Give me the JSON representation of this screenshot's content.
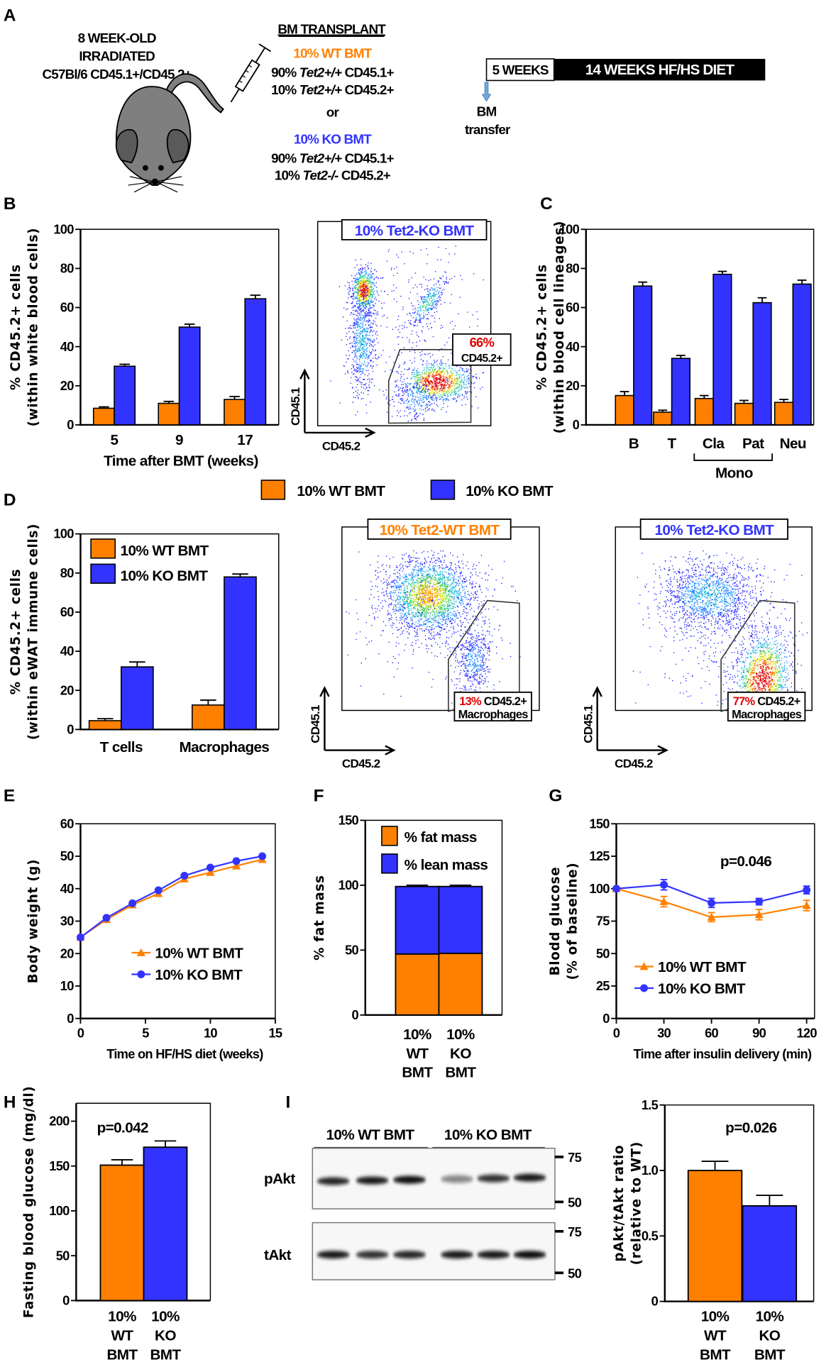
{
  "panel_labels": {
    "A": "A",
    "B": "B",
    "C": "C",
    "D": "D",
    "E": "E",
    "F": "F",
    "G": "G",
    "H": "H",
    "I": "I"
  },
  "colors": {
    "wt": "#ff8000",
    "ko": "#3333ff",
    "highlight": "#e00000",
    "arrow": "#6fa8dc",
    "mouse": "#7f7f7f"
  },
  "panel_a": {
    "mouse_text": [
      "8 WEEK-OLD",
      "IRRADIATED",
      "C57Bl/6 CD45.1+/CD45.2+"
    ],
    "transplant_title": "BM TRANSPLANT",
    "wt_label": "10% WT BMT",
    "wt_lines": [
      [
        "90% ",
        "Tet2+/+",
        " CD45.1+"
      ],
      [
        "10% ",
        "Tet2+/+",
        " CD45.2+"
      ]
    ],
    "or": "or",
    "ko_label": "10% KO BMT",
    "ko_lines": [
      [
        "90% ",
        "Tet2+/+",
        " CD45.1+"
      ],
      [
        "10% ",
        "Tet2-/-",
        " CD45.2+"
      ]
    ],
    "timeline": {
      "phase1": "5 WEEKS",
      "phase2": "14 WEEKS HF/HS DIET",
      "arrow_label": [
        "BM",
        "transfer"
      ]
    }
  },
  "shared_legend": [
    "10% WT BMT",
    "10% KO BMT"
  ],
  "flow_plots": [
    {
      "title": "10% Tet2-KO BMT",
      "title_color": "#3333ff",
      "gate_pct": "66%",
      "gate_label": [
        "CD45.2+"
      ],
      "xlabel": "CD45.2",
      "ylabel": "CD45.1"
    },
    {
      "title": "10% Tet2-WT BMT",
      "title_color": "#ff8000",
      "gate_pct": "13%",
      "gate_label": [
        " CD45.2+",
        "Macrophages"
      ],
      "xlabel": "CD45.2",
      "ylabel": "CD45.1"
    },
    {
      "title": "10% Tet2-KO BMT",
      "title_color": "#3333ff",
      "gate_pct": "77%",
      "gate_label": [
        " CD45.2+",
        "Macrophages"
      ],
      "xlabel": "CD45.2",
      "ylabel": "CD45.1"
    }
  ],
  "western_blot": {
    "group_labels": [
      "10% WT BMT",
      "10% KO BMT"
    ],
    "rows": [
      "pAkt",
      "tAkt"
    ],
    "markers": [
      "75",
      "50"
    ],
    "band_intensity": {
      "pAkt": [
        0.85,
        0.9,
        0.95,
        0.45,
        0.8,
        0.9
      ],
      "tAkt": [
        0.9,
        0.8,
        0.85,
        0.9,
        0.9,
        0.95
      ]
    }
  },
  "chart_data": [
    {
      "type": "bar",
      "categories": [
        "5",
        "9",
        "17"
      ],
      "series": [
        {
          "name": "10% WT BMT",
          "values": [
            8.5,
            11,
            13
          ],
          "errors": [
            0.7,
            1,
            1.5
          ]
        },
        {
          "name": "10% KO BMT",
          "values": [
            30,
            50,
            64.5
          ],
          "errors": [
            1,
            1.5,
            1.8
          ]
        }
      ],
      "xlabel": "Time after BMT (weeks)",
      "ylabel": [
        "% CD45.2+ cells",
        "(within white blood cells)"
      ],
      "ylim": [
        0,
        100
      ],
      "yticks": [
        0,
        20,
        40,
        60,
        80,
        100
      ],
      "legend": "below"
    },
    {
      "type": "bar",
      "categories": [
        "B",
        "T",
        "Cla",
        "Pat",
        "Neu"
      ],
      "group_label": "Mono",
      "series": [
        {
          "name": "10% WT BMT",
          "values": [
            15,
            6.5,
            13.5,
            11,
            11.5
          ],
          "errors": [
            2,
            1,
            1.5,
            1.5,
            1.5
          ]
        },
        {
          "name": "10% KO BMT",
          "values": [
            71,
            34,
            77,
            62.5,
            72
          ],
          "errors": [
            2,
            1.5,
            1.5,
            2.5,
            2
          ]
        }
      ],
      "xlabel": "",
      "ylabel": [
        "% CD45.2+ cells",
        "(within blood cell lineages)"
      ],
      "ylim": [
        0,
        100
      ],
      "yticks": [
        0,
        20,
        40,
        60,
        80,
        100
      ],
      "legend": "below"
    },
    {
      "type": "bar",
      "categories": [
        "T cells",
        "Macrophages"
      ],
      "series": [
        {
          "name": "10% WT BMT",
          "values": [
            4.5,
            12.5
          ],
          "errors": [
            1,
            2.5
          ]
        },
        {
          "name": "10% KO BMT",
          "values": [
            32,
            78
          ],
          "errors": [
            2.5,
            1.5
          ]
        }
      ],
      "xlabel": "",
      "ylabel": [
        "% CD45.2+ cells",
        "(within eWAT immune cells)"
      ],
      "ylim": [
        0,
        100
      ],
      "yticks": [
        0,
        20,
        40,
        60,
        80,
        100
      ],
      "legend": "top-left"
    },
    {
      "type": "line",
      "x": [
        0,
        2,
        4,
        6,
        8,
        10,
        12,
        14
      ],
      "series": [
        {
          "name": "10% WT BMT",
          "marker": "triangle",
          "values": [
            25,
            30.5,
            35,
            38.5,
            43,
            45,
            47,
            49
          ]
        },
        {
          "name": "10% KO BMT",
          "marker": "circle",
          "values": [
            25,
            31,
            35.5,
            39.5,
            44,
            46.5,
            48.5,
            50
          ]
        }
      ],
      "xlabel": "Time on HF/HS diet (weeks)",
      "ylabel": [
        "Body weight (g)"
      ],
      "xlim": [
        0,
        15
      ],
      "xticks": [
        0,
        5,
        10,
        15
      ],
      "ylim": [
        0,
        60
      ],
      "yticks": [
        0,
        10,
        20,
        30,
        40,
        50,
        60
      ],
      "legend": "bottom-right"
    },
    {
      "type": "bar",
      "stacked": true,
      "categories": [
        [
          "10%",
          "WT",
          "BMT"
        ],
        [
          "10%",
          "KO",
          "BMT"
        ]
      ],
      "series": [
        {
          "name": "% fat mass",
          "values": [
            47,
            47.5
          ],
          "errors": [
            1,
            1
          ]
        },
        {
          "name": "% lean mass",
          "values": [
            52,
            51.5
          ],
          "errors": [
            1,
            1
          ]
        }
      ],
      "xlabel": "",
      "ylabel": [
        "% fat mass"
      ],
      "ylim": [
        0,
        150
      ],
      "yticks": [
        0,
        50,
        100,
        150
      ],
      "legend": "top"
    },
    {
      "type": "line",
      "x": [
        0,
        30,
        60,
        90,
        120
      ],
      "series": [
        {
          "name": "10% WT BMT",
          "marker": "triangle",
          "values": [
            100,
            90,
            78,
            80,
            87
          ],
          "errors": [
            0,
            4,
            3.5,
            4,
            4
          ]
        },
        {
          "name": "10% KO BMT",
          "marker": "circle",
          "values": [
            100,
            103,
            89,
            90,
            99
          ],
          "errors": [
            0,
            4,
            3.5,
            2.5,
            3
          ]
        }
      ],
      "annotation": "p=0.046",
      "xlabel": "Time after insulin delivery (min)",
      "ylabel": [
        "Blodd glucose",
        "(% of baseline)"
      ],
      "xlim": [
        0,
        125
      ],
      "xticks": [
        0,
        30,
        60,
        90,
        120
      ],
      "ylim": [
        0,
        150
      ],
      "yticks": [
        0,
        25,
        50,
        75,
        100,
        125,
        150
      ],
      "legend": "bottom-left"
    },
    {
      "type": "bar",
      "categories": [
        [
          "10%",
          "WT",
          "BMT"
        ],
        [
          "10%",
          "KO",
          "BMT"
        ]
      ],
      "values": [
        151,
        171
      ],
      "errors": [
        6,
        7
      ],
      "bar_colors": [
        "#ff8000",
        "#3333ff"
      ],
      "annotation": "p=0.042",
      "xlabel": "",
      "ylabel": [
        "Fasting blood glucose (mg/dl)"
      ],
      "ylim": [
        0,
        220
      ],
      "yticks": [
        0,
        50,
        100,
        150,
        200
      ]
    },
    {
      "type": "bar",
      "categories": [
        [
          "10%",
          "WT",
          "BMT"
        ],
        [
          "10%",
          "KO",
          "BMT"
        ]
      ],
      "values": [
        1.0,
        0.73
      ],
      "errors": [
        0.07,
        0.08
      ],
      "bar_colors": [
        "#ff8000",
        "#3333ff"
      ],
      "annotation": "p=0.026",
      "xlabel": "",
      "ylabel": [
        "pAkt/tAkt ratio",
        "(relative to WT)"
      ],
      "ylim": [
        0,
        1.5
      ],
      "yticks": [
        0,
        0.5,
        1.0,
        1.5
      ],
      "ytick_labels": [
        "0",
        "0.5",
        "1.0",
        "1.5"
      ]
    }
  ]
}
